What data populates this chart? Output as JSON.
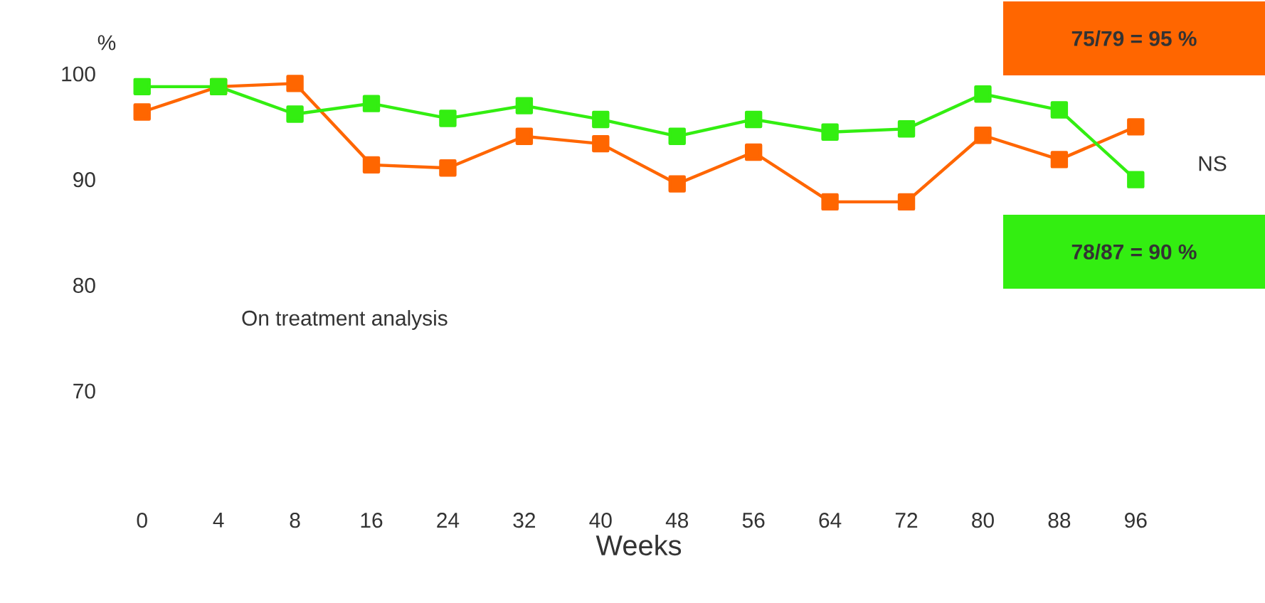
{
  "chart_data": {
    "type": "line",
    "xlabel": "Weeks",
    "ylabel": "%",
    "categories": [
      "0",
      "4",
      "8",
      "16",
      "24",
      "32",
      "40",
      "48",
      "56",
      "64",
      "72",
      "80",
      "88",
      "96"
    ],
    "series": [
      {
        "color": "#33ee11",
        "values": [
          98.8,
          98.8,
          96.2,
          97.2,
          95.8,
          97.0,
          95.7,
          94.1,
          95.7,
          94.5,
          94.8,
          98.1,
          96.6,
          90.0
        ]
      },
      {
        "color": "#ff6600",
        "values": [
          96.4,
          98.8,
          99.1,
          91.4,
          91.1,
          94.1,
          93.4,
          89.6,
          92.6,
          87.9,
          87.9,
          94.2,
          91.9,
          95.0
        ]
      }
    ],
    "ylim": [
      70,
      100
    ],
    "yticks": [
      70,
      80,
      90,
      100
    ],
    "grid": false,
    "marker": "square",
    "line_style": "solid",
    "annotations": [
      "75/79 = 95 %",
      "78/87 = 90 %",
      "NS",
      "On treatment analysis"
    ]
  }
}
